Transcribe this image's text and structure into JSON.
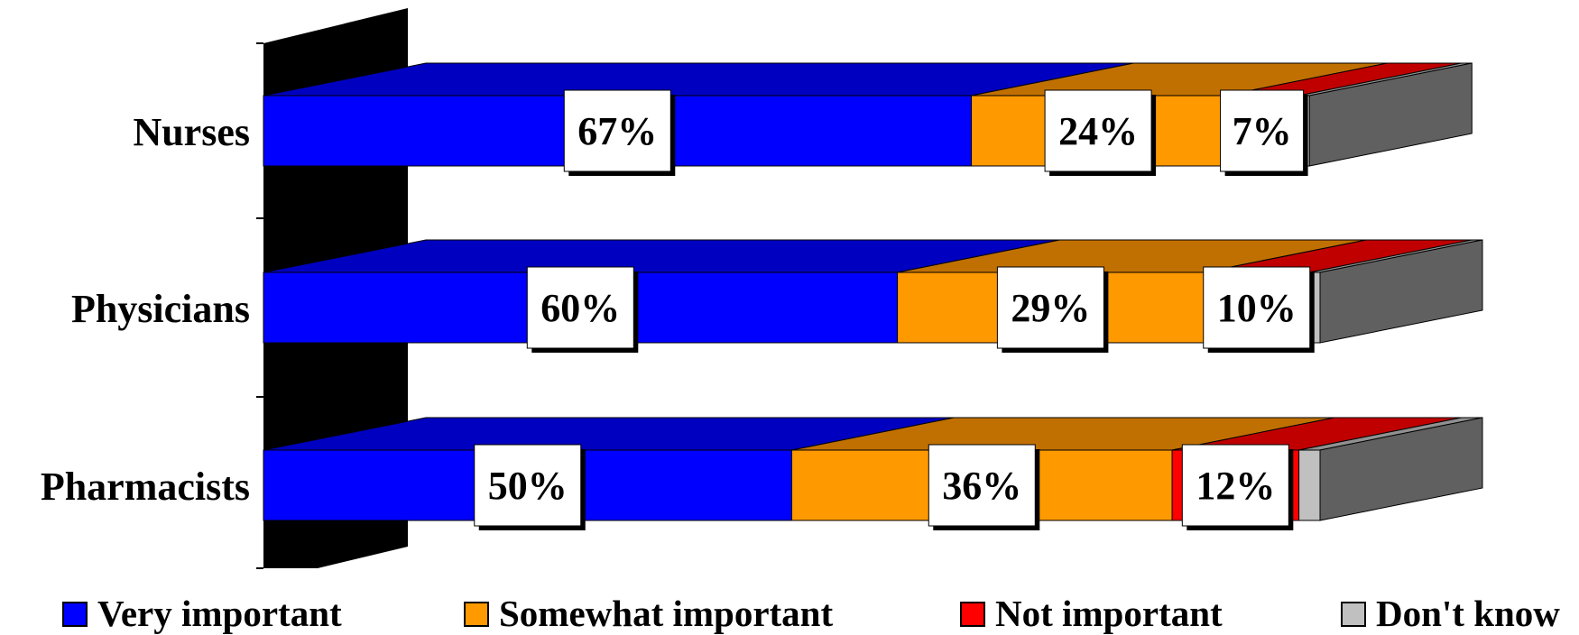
{
  "chart_data": {
    "type": "bar",
    "orientation": "horizontal",
    "stacked": true,
    "three_d": true,
    "categories": [
      "Nurses",
      "Physicians",
      "Pharmacists"
    ],
    "series": [
      {
        "name": "Very important",
        "color": "#0000FF",
        "top_color": "#0000C0",
        "values": [
          67,
          60,
          50
        ],
        "labels": [
          "67%",
          "60%",
          "50%"
        ]
      },
      {
        "name": "Somewhat important",
        "color": "#FF9900",
        "top_color": "#C07000",
        "values": [
          24,
          29,
          36
        ],
        "labels": [
          "24%",
          "29%",
          "36%"
        ]
      },
      {
        "name": "Not important",
        "color": "#FF0000",
        "top_color": "#C00000",
        "values": [
          7,
          10,
          12
        ],
        "labels": [
          "7%",
          "10%",
          "12%"
        ]
      },
      {
        "name": "Don't know",
        "color": "#C0C0C0",
        "top_color": "#909090",
        "values": [
          1,
          1,
          2
        ],
        "labels": [
          "",
          "",
          ""
        ]
      }
    ],
    "xlim": [
      0,
      100
    ],
    "legend_position": "bottom",
    "grid": false,
    "end_cap_color": "#606060",
    "wall_color": "#000000"
  }
}
